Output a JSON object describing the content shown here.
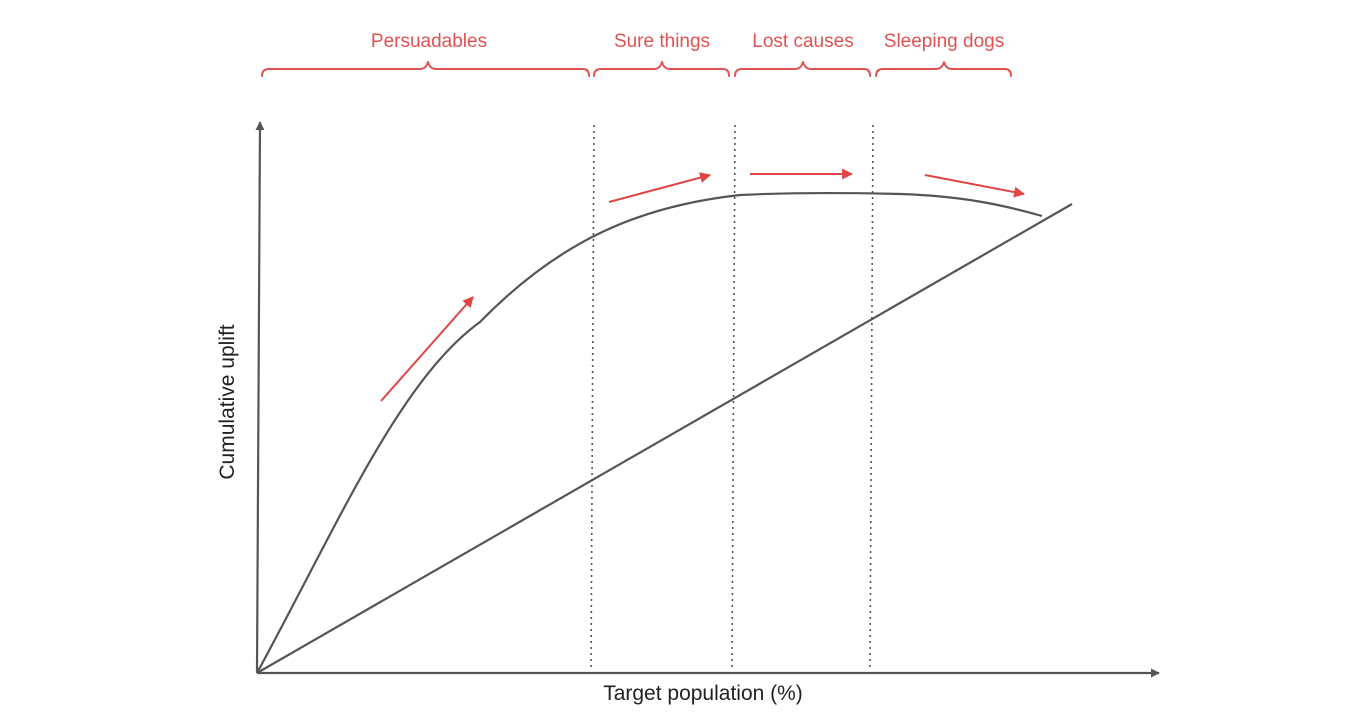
{
  "segments": [
    {
      "label": "Persuadables"
    },
    {
      "label": "Sure things"
    },
    {
      "label": "Lost causes"
    },
    {
      "label": "Sleeping dogs"
    }
  ],
  "axes": {
    "x_label": "Target population (%)",
    "y_label": "Cumulative uplift"
  },
  "colors": {
    "accent": "#e05252",
    "line": "#555555",
    "text": "#222222"
  }
}
